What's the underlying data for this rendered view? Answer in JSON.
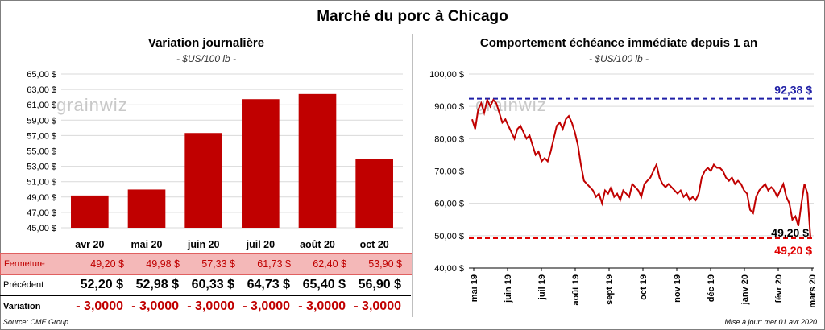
{
  "title": "Marché du porc à Chicago",
  "left_chart": {
    "title": "Variation journalière",
    "unit": "- $US/100 lb -"
  },
  "right_chart": {
    "title": "Comportement échéance immédiate depuis 1 an",
    "unit": "- $US/100 lb -"
  },
  "watermark": "grainwiz",
  "table": {
    "close_label": "Fermeture",
    "prev_label": "Précédent",
    "var_label": "Variation",
    "close": [
      "49,20  $",
      "49,98  $",
      "57,33  $",
      "61,73  $",
      "62,40  $",
      "53,90  $"
    ],
    "prev": [
      "52,20  $",
      "52,98  $",
      "60,33  $",
      "64,73  $",
      "65,40  $",
      "56,90  $"
    ],
    "var": [
      "- 3,0000",
      "- 3,0000",
      "- 3,0000",
      "- 3,0000",
      "- 3,0000",
      "- 3,0000"
    ]
  },
  "footer": {
    "source": "Source: CME Group",
    "updated": "Mise à jour: mer 01 avr 2020"
  },
  "chart_data": [
    {
      "type": "bar",
      "categories": [
        "avr 20",
        "mai 20",
        "juin 20",
        "juil 20",
        "août 20",
        "oct 20"
      ],
      "values": [
        49.2,
        49.98,
        57.33,
        61.73,
        62.4,
        53.9
      ],
      "ylim": [
        45,
        65
      ],
      "yticks": [
        "45,00 $",
        "47,00 $",
        "49,00 $",
        "51,00 $",
        "53,00 $",
        "55,00 $",
        "57,00 $",
        "59,00 $",
        "61,00 $",
        "63,00 $",
        "65,00 $"
      ],
      "color": "#c00000",
      "grid": true
    },
    {
      "type": "line",
      "ylim": [
        40,
        100
      ],
      "yticks": [
        "40,00 $",
        "50,00 $",
        "60,00 $",
        "70,00 $",
        "80,00 $",
        "90,00 $",
        "100,00 $"
      ],
      "xticks": [
        "mai 19",
        "juin 19",
        "juil 19",
        "août 19",
        "sept 19",
        "oct 19",
        "nov 19",
        "déc 19",
        "janv 20",
        "févr 20",
        "mars 20"
      ],
      "series_color": "#c00000",
      "values": [
        86,
        83,
        89,
        91,
        88,
        92,
        90,
        92,
        91,
        88,
        85,
        86,
        84,
        82,
        80,
        83,
        84,
        82,
        80,
        81,
        78,
        75,
        76,
        73,
        74,
        73,
        76,
        80,
        84,
        85,
        83,
        86,
        87,
        85,
        82,
        78,
        72,
        67,
        66,
        65,
        64,
        62,
        63,
        60,
        64,
        63,
        65,
        62,
        63,
        61,
        64,
        63,
        62,
        66,
        65,
        64,
        62,
        66,
        67,
        68,
        70,
        72,
        68,
        66,
        65,
        66,
        65,
        64,
        63,
        64,
        62,
        63,
        61,
        62,
        61,
        63,
        68,
        70,
        71,
        70,
        72,
        71,
        71,
        70,
        68,
        67,
        68,
        66,
        67,
        66,
        64,
        63,
        58,
        57,
        62,
        64,
        65,
        66,
        64,
        65,
        64,
        62,
        64,
        66,
        62,
        60,
        55,
        56,
        53,
        60,
        66,
        63,
        49.2
      ],
      "lines": [
        {
          "name": "max",
          "value": 92.38,
          "label": "92,38 $",
          "color": "#1f1fa6"
        },
        {
          "name": "current",
          "value": 49.2,
          "label": "49,20 $",
          "color": "#e00000"
        }
      ],
      "last_label": "49,20 $",
      "grid": true
    }
  ]
}
